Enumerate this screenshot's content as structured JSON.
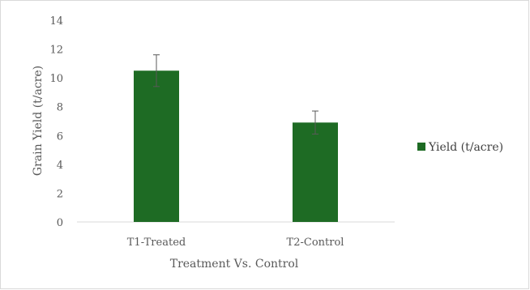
{
  "chart_data": {
    "type": "bar",
    "categories": [
      "T1-Treated",
      "T2-Control"
    ],
    "series": [
      {
        "name": "Yield (t/acre)",
        "values": [
          10.5,
          6.9
        ],
        "errors": [
          1.1,
          0.8
        ],
        "color": "#1e6b24"
      }
    ],
    "title": "",
    "xlabel": "Treatment Vs. Control",
    "ylabel": "Grain Yield (t/acre)",
    "ylim": [
      0,
      14
    ],
    "yticks": [
      "0",
      "2",
      "4",
      "6",
      "8",
      "10",
      "12",
      "14"
    ],
    "grid": false,
    "legend_position": "right"
  },
  "colors": {
    "bar": "#1e6b24",
    "axis_line": "#d9d9d9",
    "error_bar": "#595959",
    "text": "#595959"
  }
}
